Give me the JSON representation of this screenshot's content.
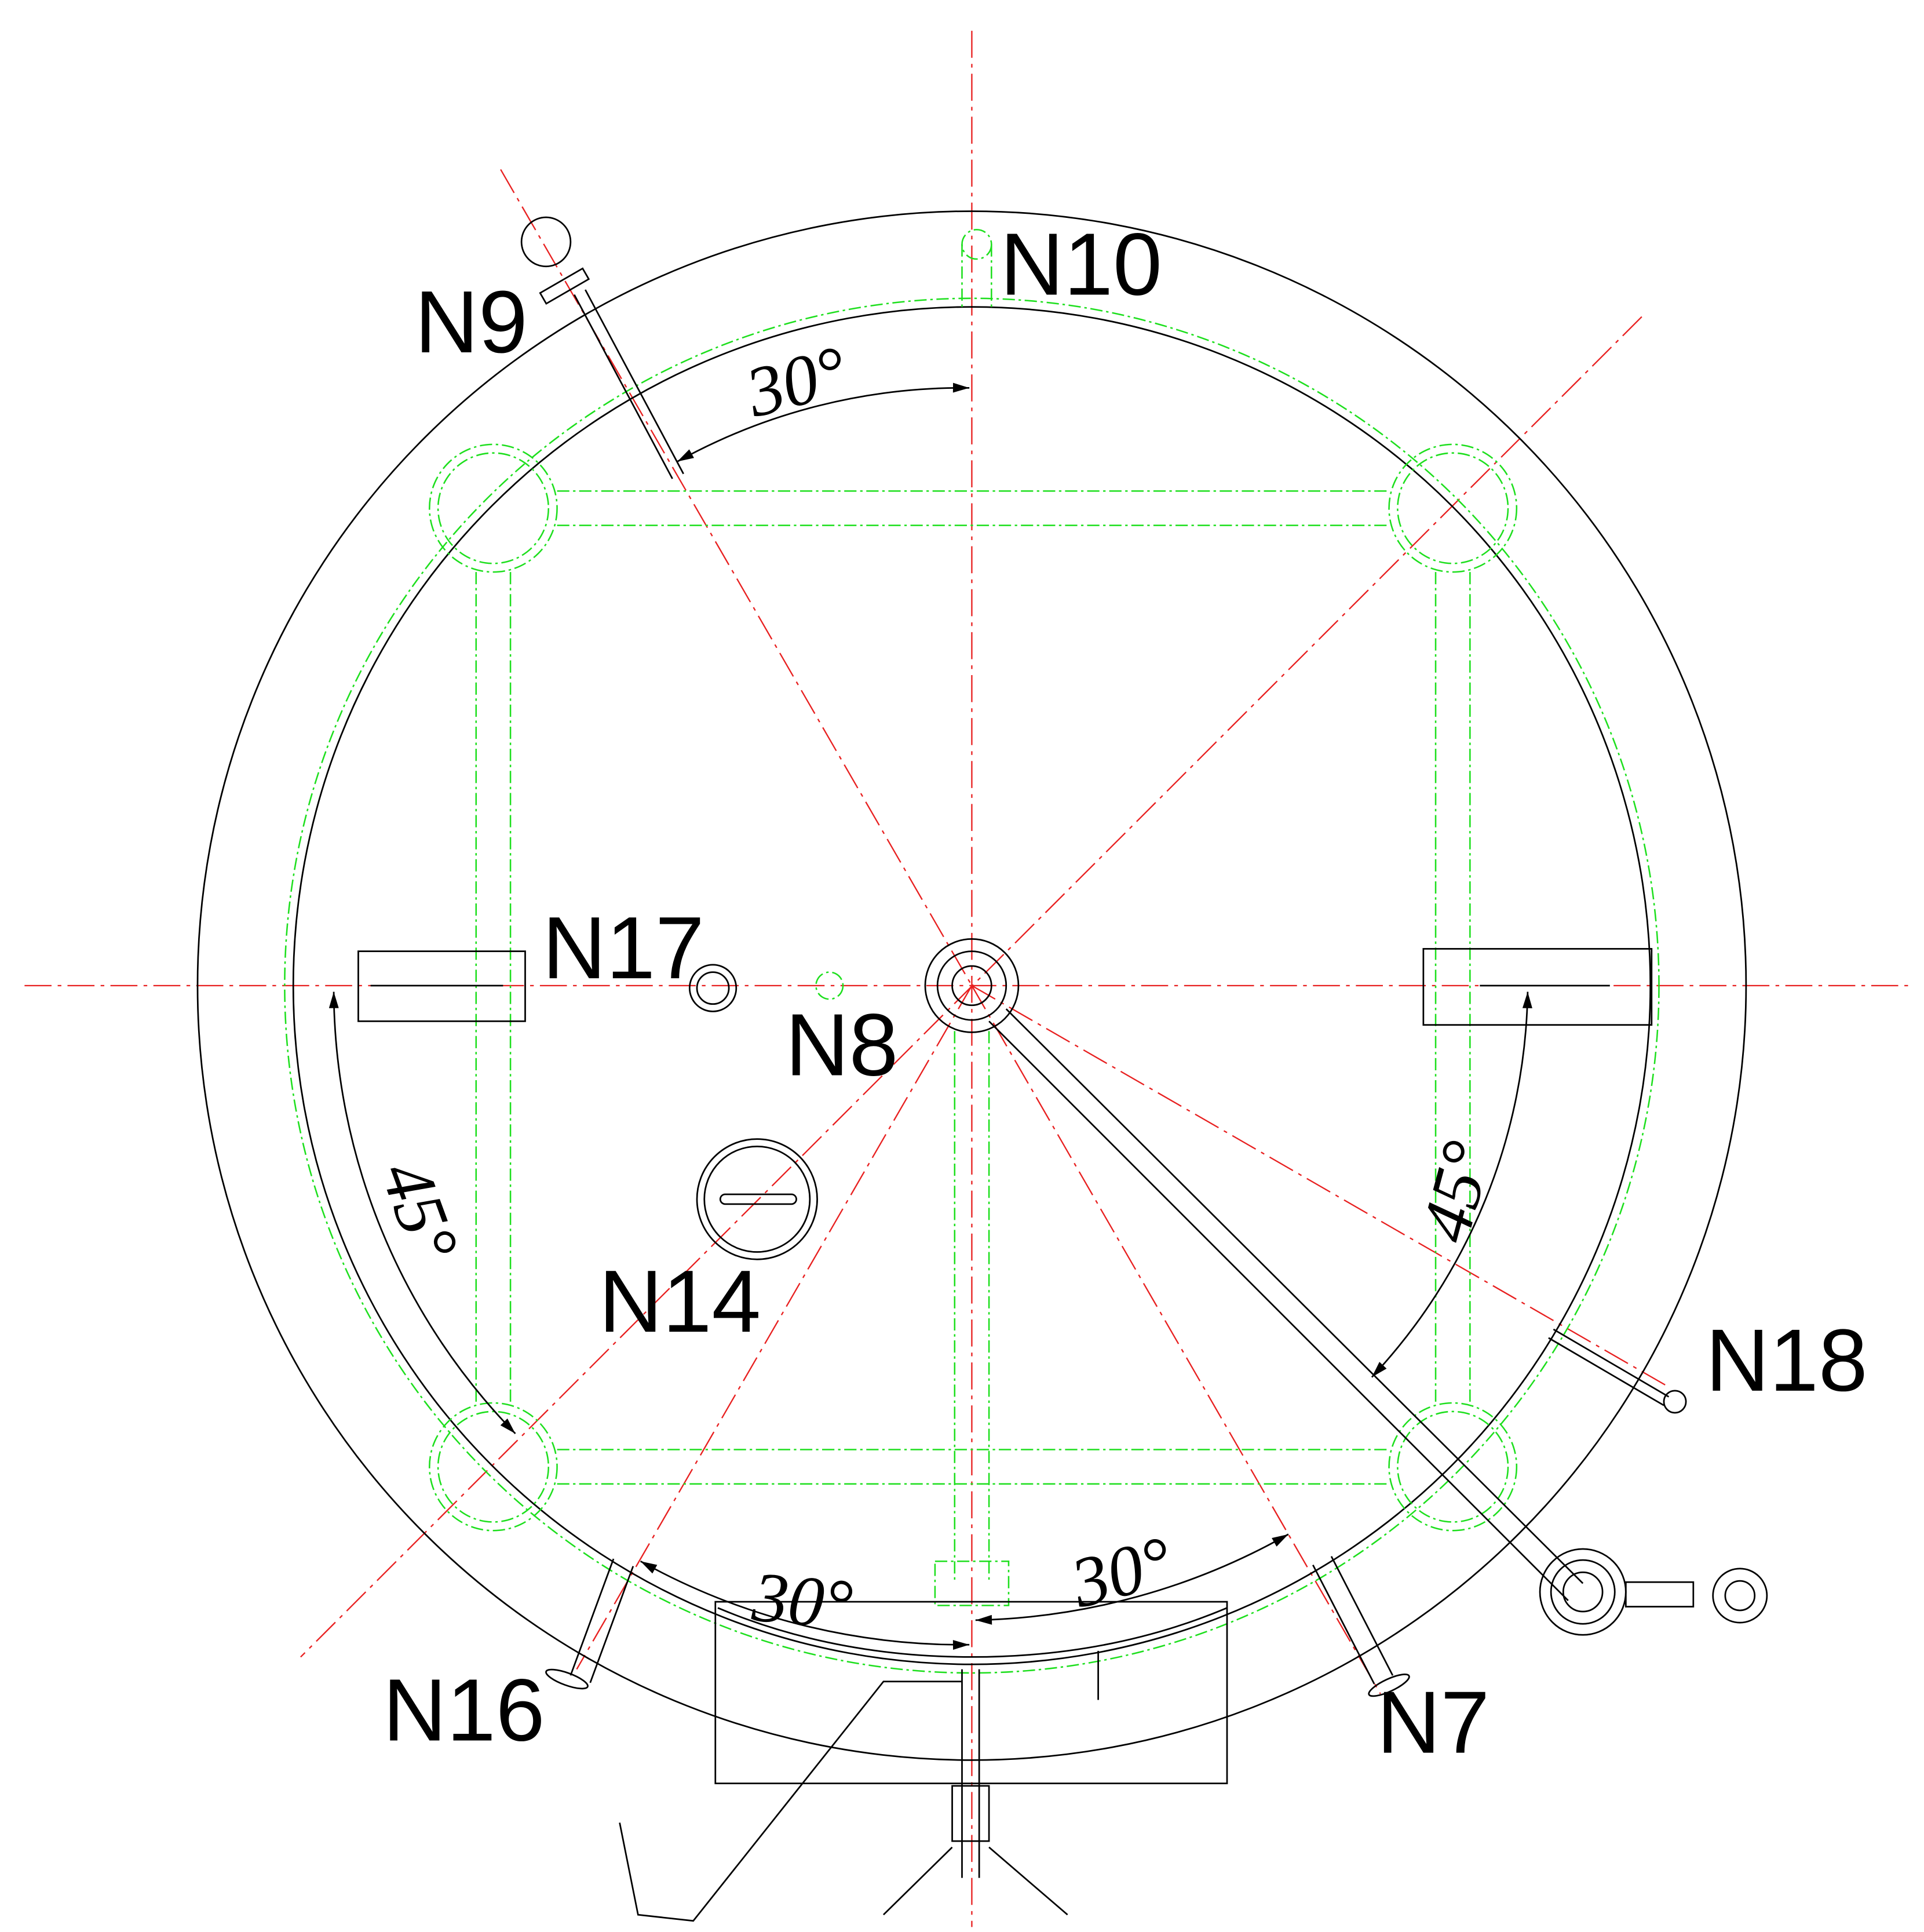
{
  "nozzles": [
    {
      "label": "N10"
    },
    {
      "label": "N9"
    },
    {
      "label": "N17"
    },
    {
      "label": "N8"
    },
    {
      "label": "N14"
    },
    {
      "label": "N18"
    },
    {
      "label": "N16"
    },
    {
      "label": "N7"
    }
  ],
  "angles": [
    {
      "label": "30°"
    },
    {
      "label": "45°"
    },
    {
      "label": "45°"
    },
    {
      "label": "30°"
    },
    {
      "label": "30°"
    }
  ]
}
